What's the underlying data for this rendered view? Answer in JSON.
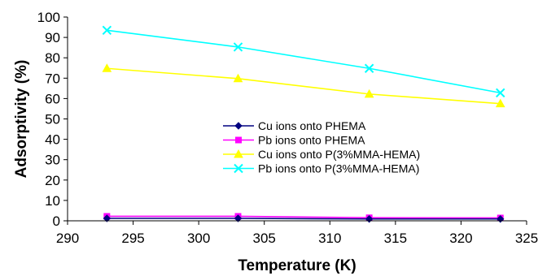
{
  "chart_data": {
    "type": "line",
    "title": "",
    "xlabel": "Temperature (K)",
    "ylabel": "Adsorptivity (%)",
    "xlim": [
      290,
      325
    ],
    "ylim": [
      0,
      100
    ],
    "xticks": [
      290,
      295,
      300,
      305,
      310,
      315,
      320,
      325
    ],
    "yticks": [
      0,
      10,
      20,
      30,
      40,
      50,
      60,
      70,
      80,
      90,
      100
    ],
    "grid": false,
    "legend_position": "center",
    "x": [
      293,
      303,
      313,
      323
    ],
    "series": [
      {
        "name": "Cu ions onto PHEMA",
        "values": [
          1.2,
          1.2,
          0.9,
          0.9
        ],
        "color": "#000080",
        "marker": "diamond"
      },
      {
        "name": "Pb ions onto PHEMA",
        "values": [
          2.2,
          2.2,
          1.5,
          1.4
        ],
        "color": "#ff00ff",
        "marker": "square"
      },
      {
        "name": "Cu ions onto P(3%MMA-HEMA)",
        "values": [
          74.8,
          69.8,
          62.2,
          57.5
        ],
        "color": "#ffff00",
        "marker": "triangle"
      },
      {
        "name": "Pb  ions onto P(3%MMA-HEMA)",
        "values": [
          93.5,
          85.3,
          74.8,
          62.8
        ],
        "color": "#00ffff",
        "marker": "x"
      }
    ]
  }
}
